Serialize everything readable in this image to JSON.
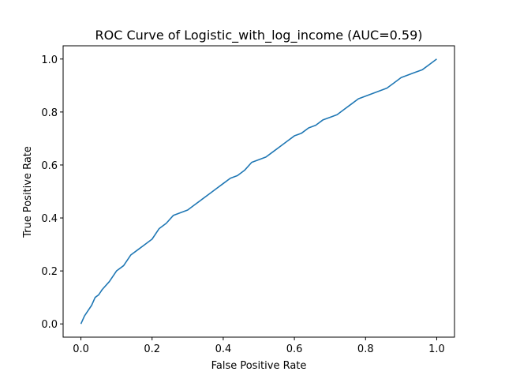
{
  "chart_data": {
    "type": "line",
    "title": "ROC Curve of Logistic_with_log_income (AUC=0.59)",
    "xlabel": "False Positive Rate",
    "ylabel": "True Positive Rate",
    "xlim": [
      -0.05,
      1.05
    ],
    "ylim": [
      -0.05,
      1.05
    ],
    "xticks": [
      0.0,
      0.2,
      0.4,
      0.6,
      0.8,
      1.0
    ],
    "yticks": [
      0.0,
      0.2,
      0.4,
      0.6,
      0.8,
      1.0
    ],
    "xtick_labels": [
      "0.0",
      "0.2",
      "0.4",
      "0.6",
      "0.8",
      "1.0"
    ],
    "ytick_labels": [
      "0.0",
      "0.2",
      "0.4",
      "0.6",
      "0.8",
      "1.0"
    ],
    "grid": false,
    "line_color": "#1f77b4",
    "series": [
      {
        "x": [
          0.0,
          0.01,
          0.02,
          0.03,
          0.04,
          0.05,
          0.06,
          0.08,
          0.1,
          0.12,
          0.14,
          0.16,
          0.18,
          0.2,
          0.22,
          0.24,
          0.26,
          0.28,
          0.3,
          0.32,
          0.34,
          0.36,
          0.38,
          0.4,
          0.42,
          0.44,
          0.46,
          0.48,
          0.5,
          0.52,
          0.54,
          0.56,
          0.58,
          0.6,
          0.62,
          0.64,
          0.66,
          0.68,
          0.7,
          0.72,
          0.74,
          0.76,
          0.78,
          0.8,
          0.82,
          0.84,
          0.86,
          0.88,
          0.9,
          0.92,
          0.94,
          0.96,
          0.98,
          0.99,
          1.0
        ],
        "y": [
          0.0,
          0.03,
          0.05,
          0.07,
          0.1,
          0.11,
          0.13,
          0.16,
          0.2,
          0.22,
          0.26,
          0.28,
          0.3,
          0.32,
          0.36,
          0.38,
          0.41,
          0.42,
          0.43,
          0.45,
          0.47,
          0.49,
          0.51,
          0.53,
          0.55,
          0.56,
          0.58,
          0.61,
          0.62,
          0.63,
          0.65,
          0.67,
          0.69,
          0.71,
          0.72,
          0.74,
          0.75,
          0.77,
          0.78,
          0.79,
          0.81,
          0.83,
          0.85,
          0.86,
          0.87,
          0.88,
          0.89,
          0.91,
          0.93,
          0.94,
          0.95,
          0.96,
          0.98,
          0.99,
          1.0
        ]
      }
    ]
  }
}
